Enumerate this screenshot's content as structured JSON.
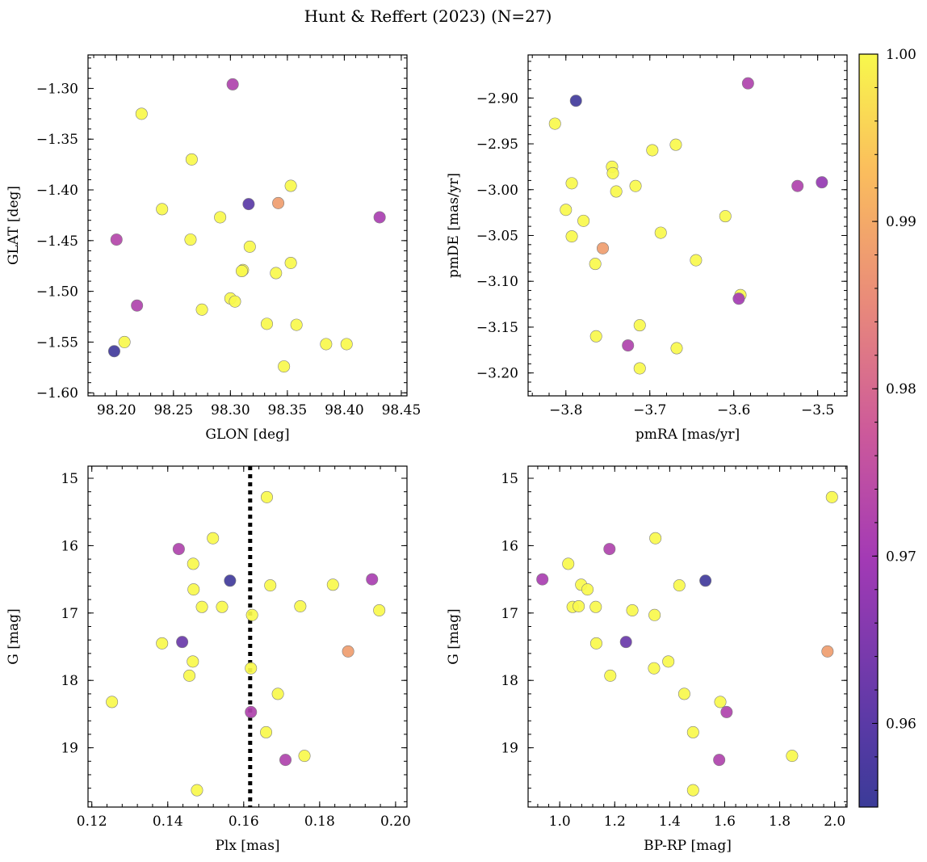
{
  "figure": {
    "title": "Hunt & Reffert (2023) (N=27)"
  },
  "colorbar": {
    "colormap": "plasma",
    "range": [
      0.955,
      1.0
    ],
    "tick_values": [
      0.96,
      0.97,
      0.98,
      0.99,
      1.0
    ],
    "tick_labels": [
      "0.96",
      "0.97",
      "0.98",
      "0.99",
      "1.00"
    ]
  },
  "chart_data": [
    {
      "id": "glon-glat",
      "type": "scatter",
      "xlabel": "GLON [deg]",
      "ylabel": "GLAT [deg]",
      "xlim": [
        98.175,
        98.455
      ],
      "ylim": [
        -1.603,
        -1.267
      ],
      "xticks": [
        98.2,
        98.25,
        98.3,
        98.35,
        98.4,
        98.45
      ],
      "xtick_labels": [
        "98.20",
        "98.25",
        "98.30",
        "98.35",
        "98.40",
        "98.45"
      ],
      "yticks": [
        -1.6,
        -1.55,
        -1.5,
        -1.45,
        -1.4,
        -1.35,
        -1.3
      ],
      "ytick_labels": [
        "−1.60",
        "−1.55",
        "−1.50",
        "−1.45",
        "−1.40",
        "−1.35",
        "−1.30"
      ],
      "x": [
        98.302,
        98.222,
        98.266,
        98.353,
        98.316,
        98.342,
        98.24,
        98.291,
        98.431,
        98.2,
        98.265,
        98.317,
        98.311,
        98.353,
        98.31,
        98.34,
        98.3,
        98.304,
        98.218,
        98.275,
        98.332,
        98.358,
        98.207,
        98.198,
        98.384,
        98.402,
        98.347
      ],
      "y": [
        -1.296,
        -1.325,
        -1.37,
        -1.396,
        -1.414,
        -1.413,
        -1.419,
        -1.427,
        -1.427,
        -1.449,
        -1.449,
        -1.456,
        -1.479,
        -1.472,
        -1.48,
        -1.482,
        -1.507,
        -1.51,
        -1.514,
        -1.518,
        -1.532,
        -1.533,
        -1.55,
        -1.559,
        -1.552,
        -1.552,
        -1.574
      ],
      "color_value": [
        0.972,
        1.0,
        1.0,
        1.0,
        0.96,
        0.988,
        1.0,
        1.0,
        0.971,
        0.973,
        1.0,
        1.0,
        1.0,
        1.0,
        1.0,
        1.0,
        1.0,
        1.0,
        0.972,
        1.0,
        1.0,
        1.0,
        1.0,
        0.956,
        1.0,
        1.0,
        1.0
      ]
    },
    {
      "id": "pmra-pmde",
      "type": "scatter",
      "xlabel": "pmRA [mas/yr]",
      "ylabel": "pmDE [mas/yr]",
      "xlim": [
        -3.845,
        -3.465
      ],
      "ylim": [
        -3.225,
        -2.853
      ],
      "xticks": [
        -3.8,
        -3.7,
        -3.6,
        -3.5
      ],
      "xtick_labels": [
        "−3.8",
        "−3.7",
        "−3.6",
        "−3.5"
      ],
      "yticks": [
        -3.2,
        -3.15,
        -3.1,
        -3.05,
        -3.0,
        -2.95,
        -2.9
      ],
      "ytick_labels": [
        "−3.20",
        "−3.15",
        "−3.10",
        "−3.05",
        "−3.00",
        "−2.95",
        "−2.90"
      ],
      "x": [
        -3.583,
        -3.788,
        -3.813,
        -3.669,
        -3.697,
        -3.745,
        -3.744,
        -3.793,
        -3.495,
        -3.524,
        -3.717,
        -3.74,
        -3.8,
        -3.779,
        -3.61,
        -3.793,
        -3.687,
        -3.756,
        -3.645,
        -3.765,
        -3.592,
        -3.594,
        -3.712,
        -3.764,
        -3.726,
        -3.668,
        -3.712
      ],
      "y": [
        -2.884,
        -2.903,
        -2.928,
        -2.951,
        -2.957,
        -2.975,
        -2.982,
        -2.993,
        -2.992,
        -2.996,
        -2.996,
        -3.002,
        -3.022,
        -3.034,
        -3.029,
        -3.051,
        -3.047,
        -3.064,
        -3.077,
        -3.081,
        -3.115,
        -3.119,
        -3.148,
        -3.16,
        -3.17,
        -3.173,
        -3.195
      ],
      "color_value": [
        0.972,
        0.956,
        1.0,
        1.0,
        1.0,
        1.0,
        1.0,
        1.0,
        0.968,
        0.972,
        1.0,
        1.0,
        1.0,
        1.0,
        1.0,
        1.0,
        1.0,
        0.988,
        1.0,
        1.0,
        1.0,
        0.97,
        1.0,
        1.0,
        0.972,
        1.0,
        1.0
      ]
    },
    {
      "id": "plx-g",
      "type": "scatter",
      "xlabel": "Plx [mas]",
      "ylabel": "G [mag]",
      "xlim": [
        0.119,
        0.203
      ],
      "ylim": [
        19.88,
        14.82
      ],
      "xticks": [
        0.12,
        0.14,
        0.16,
        0.18,
        0.2
      ],
      "xtick_labels": [
        "0.12",
        "0.14",
        "0.16",
        "0.18",
        "0.20"
      ],
      "yticks": [
        15,
        16,
        17,
        18,
        19
      ],
      "ytick_labels": [
        "15",
        "16",
        "17",
        "18",
        "19"
      ],
      "reference_line": {
        "axis": "x",
        "value": 0.1617,
        "style": "dotted"
      },
      "x": [
        0.1661,
        0.1519,
        0.1429,
        0.1467,
        0.1564,
        0.1938,
        0.167,
        0.1835,
        0.1468,
        0.149,
        0.1543,
        0.1749,
        0.1957,
        0.1622,
        0.1385,
        0.1438,
        0.1875,
        0.1466,
        0.1619,
        0.1457,
        0.169,
        0.1253,
        0.1619,
        0.1659,
        0.176,
        0.171,
        0.1477
      ],
      "y": [
        15.28,
        15.89,
        16.05,
        16.27,
        16.52,
        16.5,
        16.59,
        16.58,
        16.65,
        16.91,
        16.91,
        16.9,
        16.96,
        17.03,
        17.45,
        17.43,
        17.57,
        17.72,
        17.82,
        17.93,
        18.2,
        18.32,
        18.47,
        18.77,
        19.12,
        19.18,
        19.63
      ],
      "color_value": [
        1.0,
        1.0,
        0.972,
        1.0,
        0.956,
        0.971,
        1.0,
        1.0,
        1.0,
        1.0,
        1.0,
        1.0,
        1.0,
        1.0,
        1.0,
        0.962,
        0.988,
        1.0,
        1.0,
        1.0,
        1.0,
        1.0,
        0.972,
        1.0,
        1.0,
        0.972,
        1.0
      ]
    },
    {
      "id": "bprp-g",
      "type": "scatter",
      "xlabel": "BP-RP [mag]",
      "ylabel": "G [mag]",
      "xlim": [
        0.885,
        2.045
      ],
      "ylim": [
        19.88,
        14.82
      ],
      "xticks": [
        1.0,
        1.2,
        1.4,
        1.6,
        1.8,
        2.0
      ],
      "xtick_labels": [
        "1.0",
        "1.2",
        "1.4",
        "1.6",
        "1.8",
        "2.0"
      ],
      "yticks": [
        15,
        16,
        17,
        18,
        19
      ],
      "ytick_labels": [
        "15",
        "16",
        "17",
        "18",
        "19"
      ],
      "x": [
        1.99,
        1.348,
        1.181,
        1.031,
        0.937,
        1.53,
        1.078,
        1.101,
        1.435,
        1.047,
        1.069,
        1.131,
        1.264,
        1.345,
        1.133,
        1.241,
        1.974,
        1.395,
        1.343,
        1.184,
        1.453,
        1.584,
        1.607,
        1.485,
        1.845,
        1.58,
        1.485
      ],
      "y": [
        15.28,
        15.89,
        16.05,
        16.27,
        16.5,
        16.52,
        16.58,
        16.65,
        16.59,
        16.91,
        16.9,
        16.91,
        16.96,
        17.03,
        17.45,
        17.43,
        17.57,
        17.72,
        17.82,
        17.93,
        18.2,
        18.32,
        18.47,
        18.77,
        19.12,
        19.18,
        19.63
      ],
      "color_value": [
        1.0,
        1.0,
        0.972,
        1.0,
        0.971,
        0.956,
        1.0,
        1.0,
        1.0,
        1.0,
        1.0,
        1.0,
        1.0,
        1.0,
        1.0,
        0.962,
        0.988,
        1.0,
        1.0,
        1.0,
        1.0,
        1.0,
        0.972,
        1.0,
        1.0,
        0.972,
        1.0
      ]
    }
  ]
}
